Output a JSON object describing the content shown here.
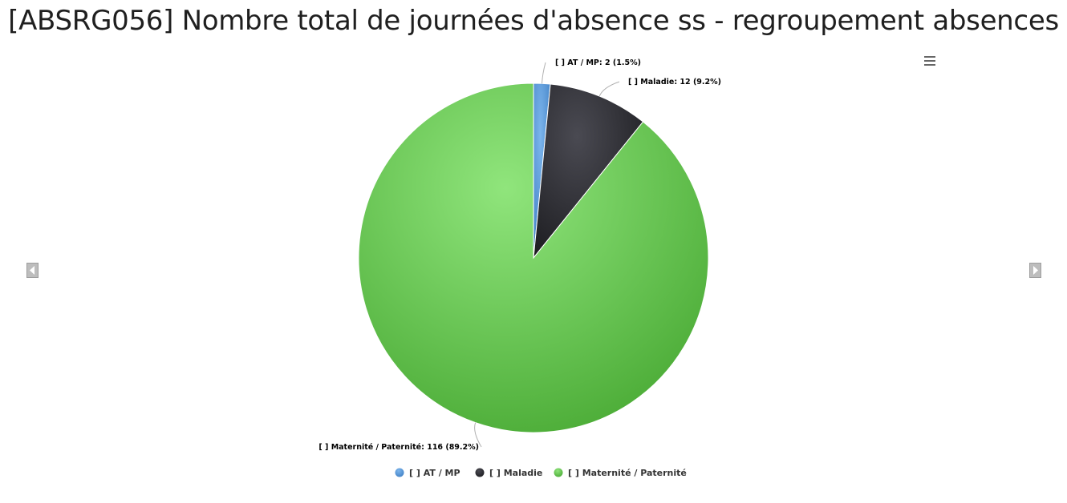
{
  "page": {
    "title": "[ABSRG056] Nombre total de journées d'absence ss - regroupement absences"
  },
  "controls": {
    "menu_icon": "hamburger-menu-icon",
    "prev_icon": "chevron-left-icon",
    "next_icon": "chevron-right-icon"
  },
  "chart_data": {
    "type": "pie",
    "title": "[ABSRG056] Nombre total de journées d'absence ss - regroupement absences",
    "legend_position": "bottom",
    "slices": [
      {
        "name": "[ ] AT / MP",
        "value": 2,
        "percent": "1.5%",
        "label": "[ ] AT / MP: 2 (1.5%)",
        "color": "#4a90d9"
      },
      {
        "name": "[ ] Maladie",
        "value": 12,
        "percent": "9.2%",
        "label": "[ ] Maladie: 12 (9.2%)",
        "color": "#2b2b30"
      },
      {
        "name": "[ ] Maternité / Paternité",
        "value": 116,
        "percent": "89.2%",
        "label": "[ ] Maternité / Paternité: 116 (89.2%)",
        "color": "#5cbf4a"
      }
    ]
  }
}
